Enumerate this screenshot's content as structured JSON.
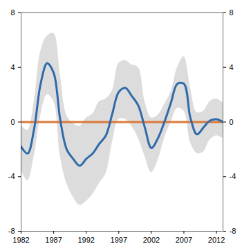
{
  "chart_data": {
    "type": "line",
    "x": [
      1982,
      1983,
      1984,
      1985,
      1986,
      1987,
      1988,
      1989,
      1990,
      1991,
      1992,
      1993,
      1994,
      1995,
      1996,
      1997,
      1998,
      1999,
      2000,
      2001,
      2002,
      2003,
      2004,
      2005,
      2006,
      2007,
      2008,
      2009,
      2010,
      2011,
      2012,
      2013
    ],
    "series": [
      {
        "color": "#2f6aa9",
        "values": [
          -1.8,
          -2.3,
          -0.5,
          2.8,
          4.3,
          3.6,
          0.2,
          -2.0,
          -2.7,
          -3.2,
          -2.7,
          -2.3,
          -1.6,
          -1.0,
          0.6,
          2.2,
          2.5,
          1.9,
          1.2,
          -0.4,
          -1.9,
          -1.2,
          0.0,
          1.4,
          2.8,
          2.8,
          0.3,
          -0.9,
          -0.4,
          0.1,
          0.2,
          0.0
        ]
      },
      {
        "color": "#dc7a3a",
        "values": [
          0,
          0,
          0,
          0,
          0,
          0,
          0,
          0,
          0,
          0,
          0,
          0,
          0,
          0,
          0,
          0,
          0,
          0,
          0,
          0,
          0,
          0,
          0,
          0,
          0,
          0,
          0,
          0,
          0,
          0,
          0,
          0
        ]
      }
    ],
    "band": {
      "color": "#dcdcdc",
      "upper": [
        -0.2,
        -0.6,
        1.5,
        5.2,
        6.3,
        6.5,
        3.5,
        0.5,
        -0.1,
        -0.3,
        0.3,
        0.6,
        1.5,
        1.7,
        2.3,
        4.3,
        4.5,
        4.2,
        4.0,
        1.5,
        0.3,
        0.5,
        1.3,
        2.2,
        4.0,
        4.8,
        2.5,
        0.7,
        0.8,
        1.5,
        1.7,
        1.4
      ],
      "lower": [
        -3.5,
        -4.3,
        -2.5,
        0.5,
        2.0,
        1.5,
        -2.5,
        -4.5,
        -5.5,
        -6.1,
        -5.8,
        -5.3,
        -4.5,
        -3.8,
        -1.5,
        0.2,
        0.2,
        -0.3,
        -1.2,
        -2.5,
        -3.7,
        -2.8,
        -1.2,
        0.0,
        1.0,
        0.8,
        -1.5,
        -2.3,
        -2.2,
        -1.3,
        -1.0,
        -1.2
      ]
    },
    "xlim": [
      1982,
      2013
    ],
    "xticks": [
      1982,
      1987,
      1992,
      1997,
      2002,
      2007,
      2012
    ],
    "ylim": [
      -8,
      8
    ],
    "yticks": [
      -8,
      -4,
      0,
      4,
      8
    ],
    "grid": false
  }
}
